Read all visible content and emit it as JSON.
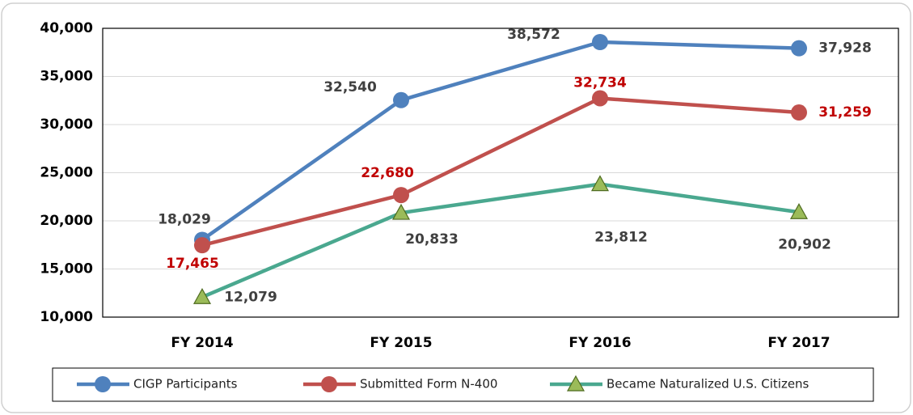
{
  "chart_data": {
    "type": "line",
    "categories": [
      "FY 2014",
      "FY 2015",
      "FY 2016",
      "FY 2017"
    ],
    "series": [
      {
        "name": "CIGP Participants",
        "color": "#4f81bd",
        "values": [
          18029,
          32540,
          38572,
          37928
        ],
        "value_labels": [
          "18,029",
          "32,540",
          "38,572",
          "37,928"
        ]
      },
      {
        "name": "Submitted Form N-400",
        "color": "#c0504d",
        "values": [
          17465,
          22680,
          32734,
          31259
        ],
        "value_labels": [
          "17,465",
          "22,680",
          "32,734",
          "31,259"
        ]
      },
      {
        "name": "Became Naturalized U.S. Citizens",
        "color": "#4aa88f",
        "values": [
          12079,
          20833,
          23812,
          20902
        ],
        "value_labels": [
          "12,079",
          "20,833",
          "23,812",
          "20,902"
        ]
      }
    ],
    "ylim": [
      10000,
      40000
    ],
    "yticks": [
      {
        "value": 10000,
        "label": "10,000"
      },
      {
        "value": 15000,
        "label": "15,000"
      },
      {
        "value": 20000,
        "label": "20,000"
      },
      {
        "value": 25000,
        "label": "25,000"
      },
      {
        "value": 30000,
        "label": "30,000"
      },
      {
        "value": 35000,
        "label": "35,000"
      },
      {
        "value": 40000,
        "label": "40,000"
      }
    ],
    "grid": true,
    "legend": "bottom"
  }
}
